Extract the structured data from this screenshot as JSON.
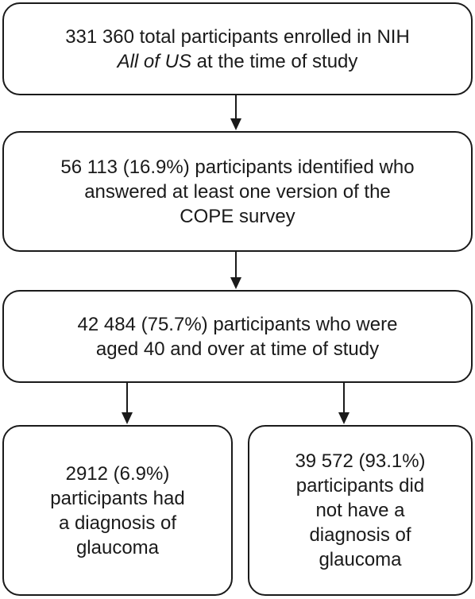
{
  "flowchart": {
    "box1": {
      "line1": "331 360 total participants enrolled in NIH",
      "line2_italic": "All of US",
      "line2_rest": " at the time of study"
    },
    "box2": {
      "line1": "56 113 (16.9%) participants identified who",
      "line2": "answered at least one version of the",
      "line3": "COPE survey"
    },
    "box3": {
      "line1": "42 484 (75.7%) participants who were",
      "line2": "aged 40 and over at time of study"
    },
    "box4": {
      "line1": "2912 (6.9%)",
      "line2": "participants had",
      "line3": "a diagnosis of",
      "line4": "glaucoma"
    },
    "box5": {
      "line1": "39 572 (93.1%)",
      "line2": "participants did",
      "line3": "not have a",
      "line4": "diagnosis of",
      "line5": "glaucoma"
    }
  }
}
